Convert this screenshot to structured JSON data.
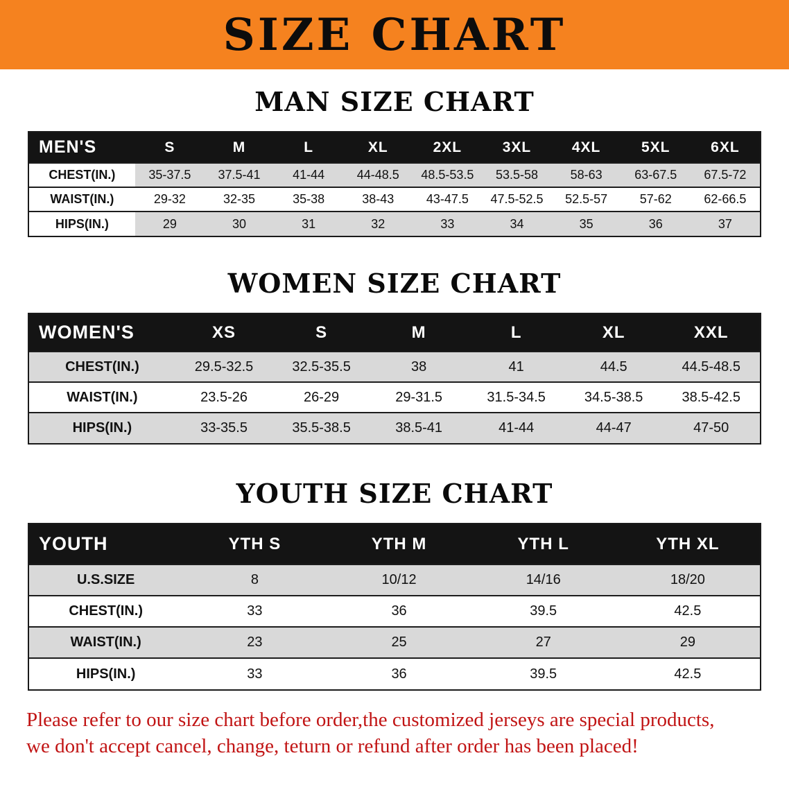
{
  "banner": {
    "title": "SIZE CHART"
  },
  "sections": [
    {
      "heading": "MAN SIZE CHART",
      "table": {
        "corner": "MEN'S",
        "columns": [
          "S",
          "M",
          "L",
          "XL",
          "2XL",
          "3XL",
          "4XL",
          "5XL",
          "6XL"
        ],
        "rows": [
          {
            "label": "CHEST(IN.)",
            "values": [
              "35-37.5",
              "37.5-41",
              "41-44",
              "44-48.5",
              "48.5-53.5",
              "53.5-58",
              "58-63",
              "63-67.5",
              "67.5-72"
            ]
          },
          {
            "label": "WAIST(IN.)",
            "values": [
              "29-32",
              "32-35",
              "35-38",
              "38-43",
              "43-47.5",
              "47.5-52.5",
              "52.5-57",
              "57-62",
              "62-66.5"
            ]
          },
          {
            "label": "HIPS(IN.)",
            "values": [
              "29",
              "30",
              "31",
              "32",
              "33",
              "34",
              "35",
              "36",
              "37"
            ]
          }
        ]
      }
    },
    {
      "heading": "WOMEN SIZE CHART",
      "table": {
        "corner": "WOMEN'S",
        "columns": [
          "XS",
          "S",
          "M",
          "L",
          "XL",
          "XXL"
        ],
        "rows": [
          {
            "label": "CHEST(IN.)",
            "values": [
              "29.5-32.5",
              "32.5-35.5",
              "38",
              "41",
              "44.5",
              "44.5-48.5"
            ]
          },
          {
            "label": "WAIST(IN.)",
            "values": [
              "23.5-26",
              "26-29",
              "29-31.5",
              "31.5-34.5",
              "34.5-38.5",
              "38.5-42.5"
            ]
          },
          {
            "label": "HIPS(IN.)",
            "values": [
              "33-35.5",
              "35.5-38.5",
              "38.5-41",
              "41-44",
              "44-47",
              "47-50"
            ]
          }
        ]
      }
    },
    {
      "heading": "YOUTH SIZE CHART",
      "table": {
        "corner": "YOUTH",
        "columns": [
          "YTH S",
          "YTH M",
          "YTH L",
          "YTH XL"
        ],
        "rows": [
          {
            "label": "U.S.SIZE",
            "values": [
              "8",
              "10/12",
              "14/16",
              "18/20"
            ]
          },
          {
            "label": "CHEST(IN.)",
            "values": [
              "33",
              "36",
              "39.5",
              "42.5"
            ]
          },
          {
            "label": "WAIST(IN.)",
            "values": [
              "23",
              "25",
              "27",
              "29"
            ]
          },
          {
            "label": "HIPS(IN.)",
            "values": [
              "33",
              "36",
              "39.5",
              "42.5"
            ]
          }
        ]
      }
    }
  ],
  "disclaimer": {
    "line1": "Please refer to our size chart before order,the customized jerseys are special products,",
    "line2": "we don't accept cancel, change, teturn or refund after order has been placed!"
  },
  "colors": {
    "banner_bg": "#f5821f",
    "header_bar": "#141414",
    "row_shade": "#d9d9d9",
    "disclaimer_red": "#c11414"
  }
}
